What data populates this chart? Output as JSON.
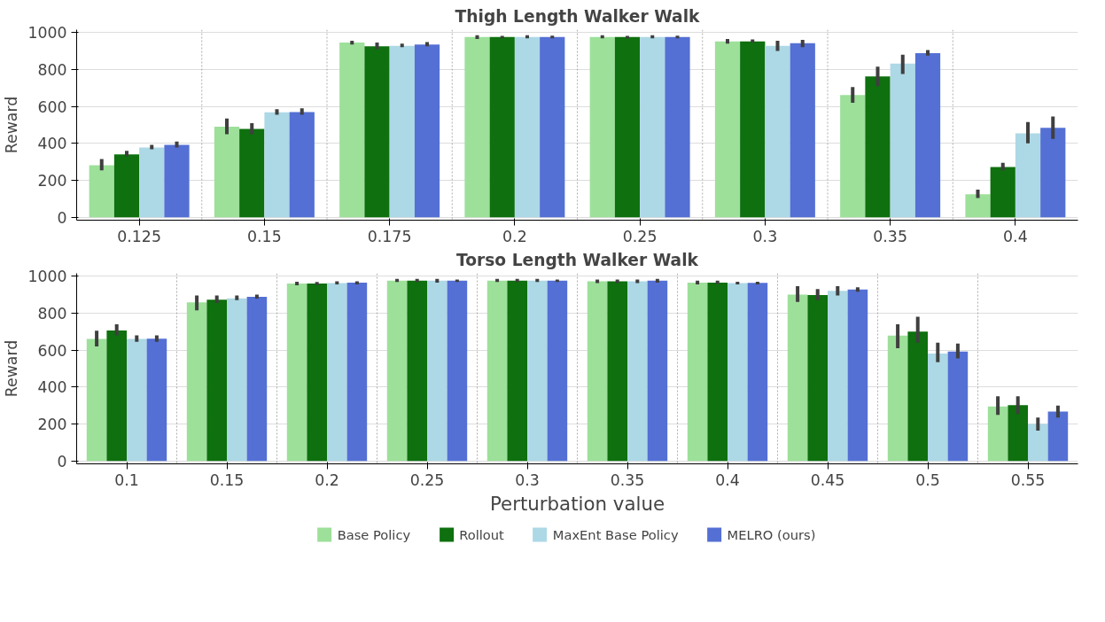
{
  "chart_data": [
    {
      "type": "bar",
      "title": "Thigh Length Walker Walk",
      "ylabel": "Reward",
      "categories": [
        "0.125",
        "0.15",
        "0.175",
        "0.2",
        "0.25",
        "0.3",
        "0.35",
        "0.4"
      ],
      "ylim": [
        -15,
        1015
      ],
      "yticks": [
        0,
        200,
        400,
        600,
        800,
        1000
      ],
      "grid": true,
      "series": [
        {
          "color": "#9de09a",
          "values": [
            282,
            490,
            945,
            975,
            975,
            952,
            662,
            125
          ],
          "errors": [
            [
              255,
              315
            ],
            [
              450,
              535
            ],
            [
              935,
              955
            ],
            [
              965,
              985
            ],
            [
              968,
              985
            ],
            [
              940,
              965
            ],
            [
              620,
              705
            ],
            [
              105,
              150
            ]
          ]
        },
        {
          "color": "#0e700e",
          "values": [
            341,
            478,
            925,
            975,
            975,
            952,
            762,
            272
          ],
          "errors": [
            [
              330,
              360
            ],
            [
              450,
              510
            ],
            [
              910,
              945
            ],
            [
              968,
              982
            ],
            [
              968,
              982
            ],
            [
              945,
              962
            ],
            [
              710,
              815
            ],
            [
              255,
              295
            ]
          ]
        },
        {
          "color": "#add8e6",
          "values": [
            378,
            568,
            928,
            975,
            975,
            928,
            832,
            455
          ],
          "errors": [
            [
              368,
              392
            ],
            [
              555,
              585
            ],
            [
              920,
              940
            ],
            [
              968,
              985
            ],
            [
              968,
              985
            ],
            [
              900,
              955
            ],
            [
              775,
              880
            ],
            [
              400,
              515
            ]
          ]
        },
        {
          "color": "#5470d4",
          "values": [
            392,
            570,
            935,
            975,
            975,
            942,
            888,
            485
          ],
          "errors": [
            [
              378,
              410
            ],
            [
              555,
              590
            ],
            [
              925,
              948
            ],
            [
              968,
              983
            ],
            [
              968,
              983
            ],
            [
              920,
              960
            ],
            [
              875,
              905
            ],
            [
              425,
              545
            ]
          ]
        }
      ]
    },
    {
      "type": "bar",
      "title": "Torso Length Walker Walk",
      "ylabel": "Reward",
      "xlabel": "Perturbation value",
      "categories": [
        "0.1",
        "0.15",
        "0.2",
        "0.25",
        "0.3",
        "0.35",
        "0.4",
        "0.45",
        "0.5",
        "0.55"
      ],
      "ylim": [
        -15,
        1015
      ],
      "yticks": [
        0,
        200,
        400,
        600,
        800,
        1000
      ],
      "grid": true,
      "legend": "bottom",
      "series": [
        {
          "name": "Base Policy",
          "color": "#9de09a",
          "values": [
            660,
            858,
            960,
            975,
            975,
            972,
            965,
            900,
            678,
            295
          ],
          "errors": [
            [
              620,
              705
            ],
            [
              815,
              895
            ],
            [
              950,
              970
            ],
            [
              968,
              985
            ],
            [
              968,
              985
            ],
            [
              962,
              982
            ],
            [
              955,
              975
            ],
            [
              860,
              945
            ],
            [
              610,
              740
            ],
            [
              250,
              350
            ]
          ]
        },
        {
          "name": "Rollout",
          "color": "#0e700e",
          "values": [
            706,
            872,
            960,
            975,
            975,
            972,
            965,
            898,
            700,
            302
          ],
          "errors": [
            [
              680,
              740
            ],
            [
              855,
              895
            ],
            [
              952,
              968
            ],
            [
              968,
              985
            ],
            [
              968,
              985
            ],
            [
              962,
              982
            ],
            [
              958,
              975
            ],
            [
              870,
              930
            ],
            [
              640,
              780
            ],
            [
              255,
              350
            ]
          ]
        },
        {
          "name": "MaxEnt Base Policy",
          "color": "#add8e6",
          "values": [
            660,
            880,
            962,
            975,
            975,
            972,
            962,
            920,
            582,
            200
          ],
          "errors": [
            [
              645,
              680
            ],
            [
              870,
              895
            ],
            [
              955,
              972
            ],
            [
              965,
              985
            ],
            [
              968,
              985
            ],
            [
              962,
              982
            ],
            [
              955,
              970
            ],
            [
              895,
              945
            ],
            [
              535,
              640
            ],
            [
              165,
              235
            ]
          ]
        },
        {
          "name": "MELRO (ours)",
          "color": "#5470d4",
          "values": [
            662,
            888,
            965,
            975,
            975,
            975,
            963,
            928,
            592,
            268
          ],
          "errors": [
            [
              645,
              680
            ],
            [
              878,
              900
            ],
            [
              955,
              972
            ],
            [
              968,
              982
            ],
            [
              968,
              982
            ],
            [
              965,
              985
            ],
            [
              955,
              970
            ],
            [
              915,
              940
            ],
            [
              555,
              635
            ],
            [
              235,
              300
            ]
          ]
        }
      ]
    }
  ]
}
